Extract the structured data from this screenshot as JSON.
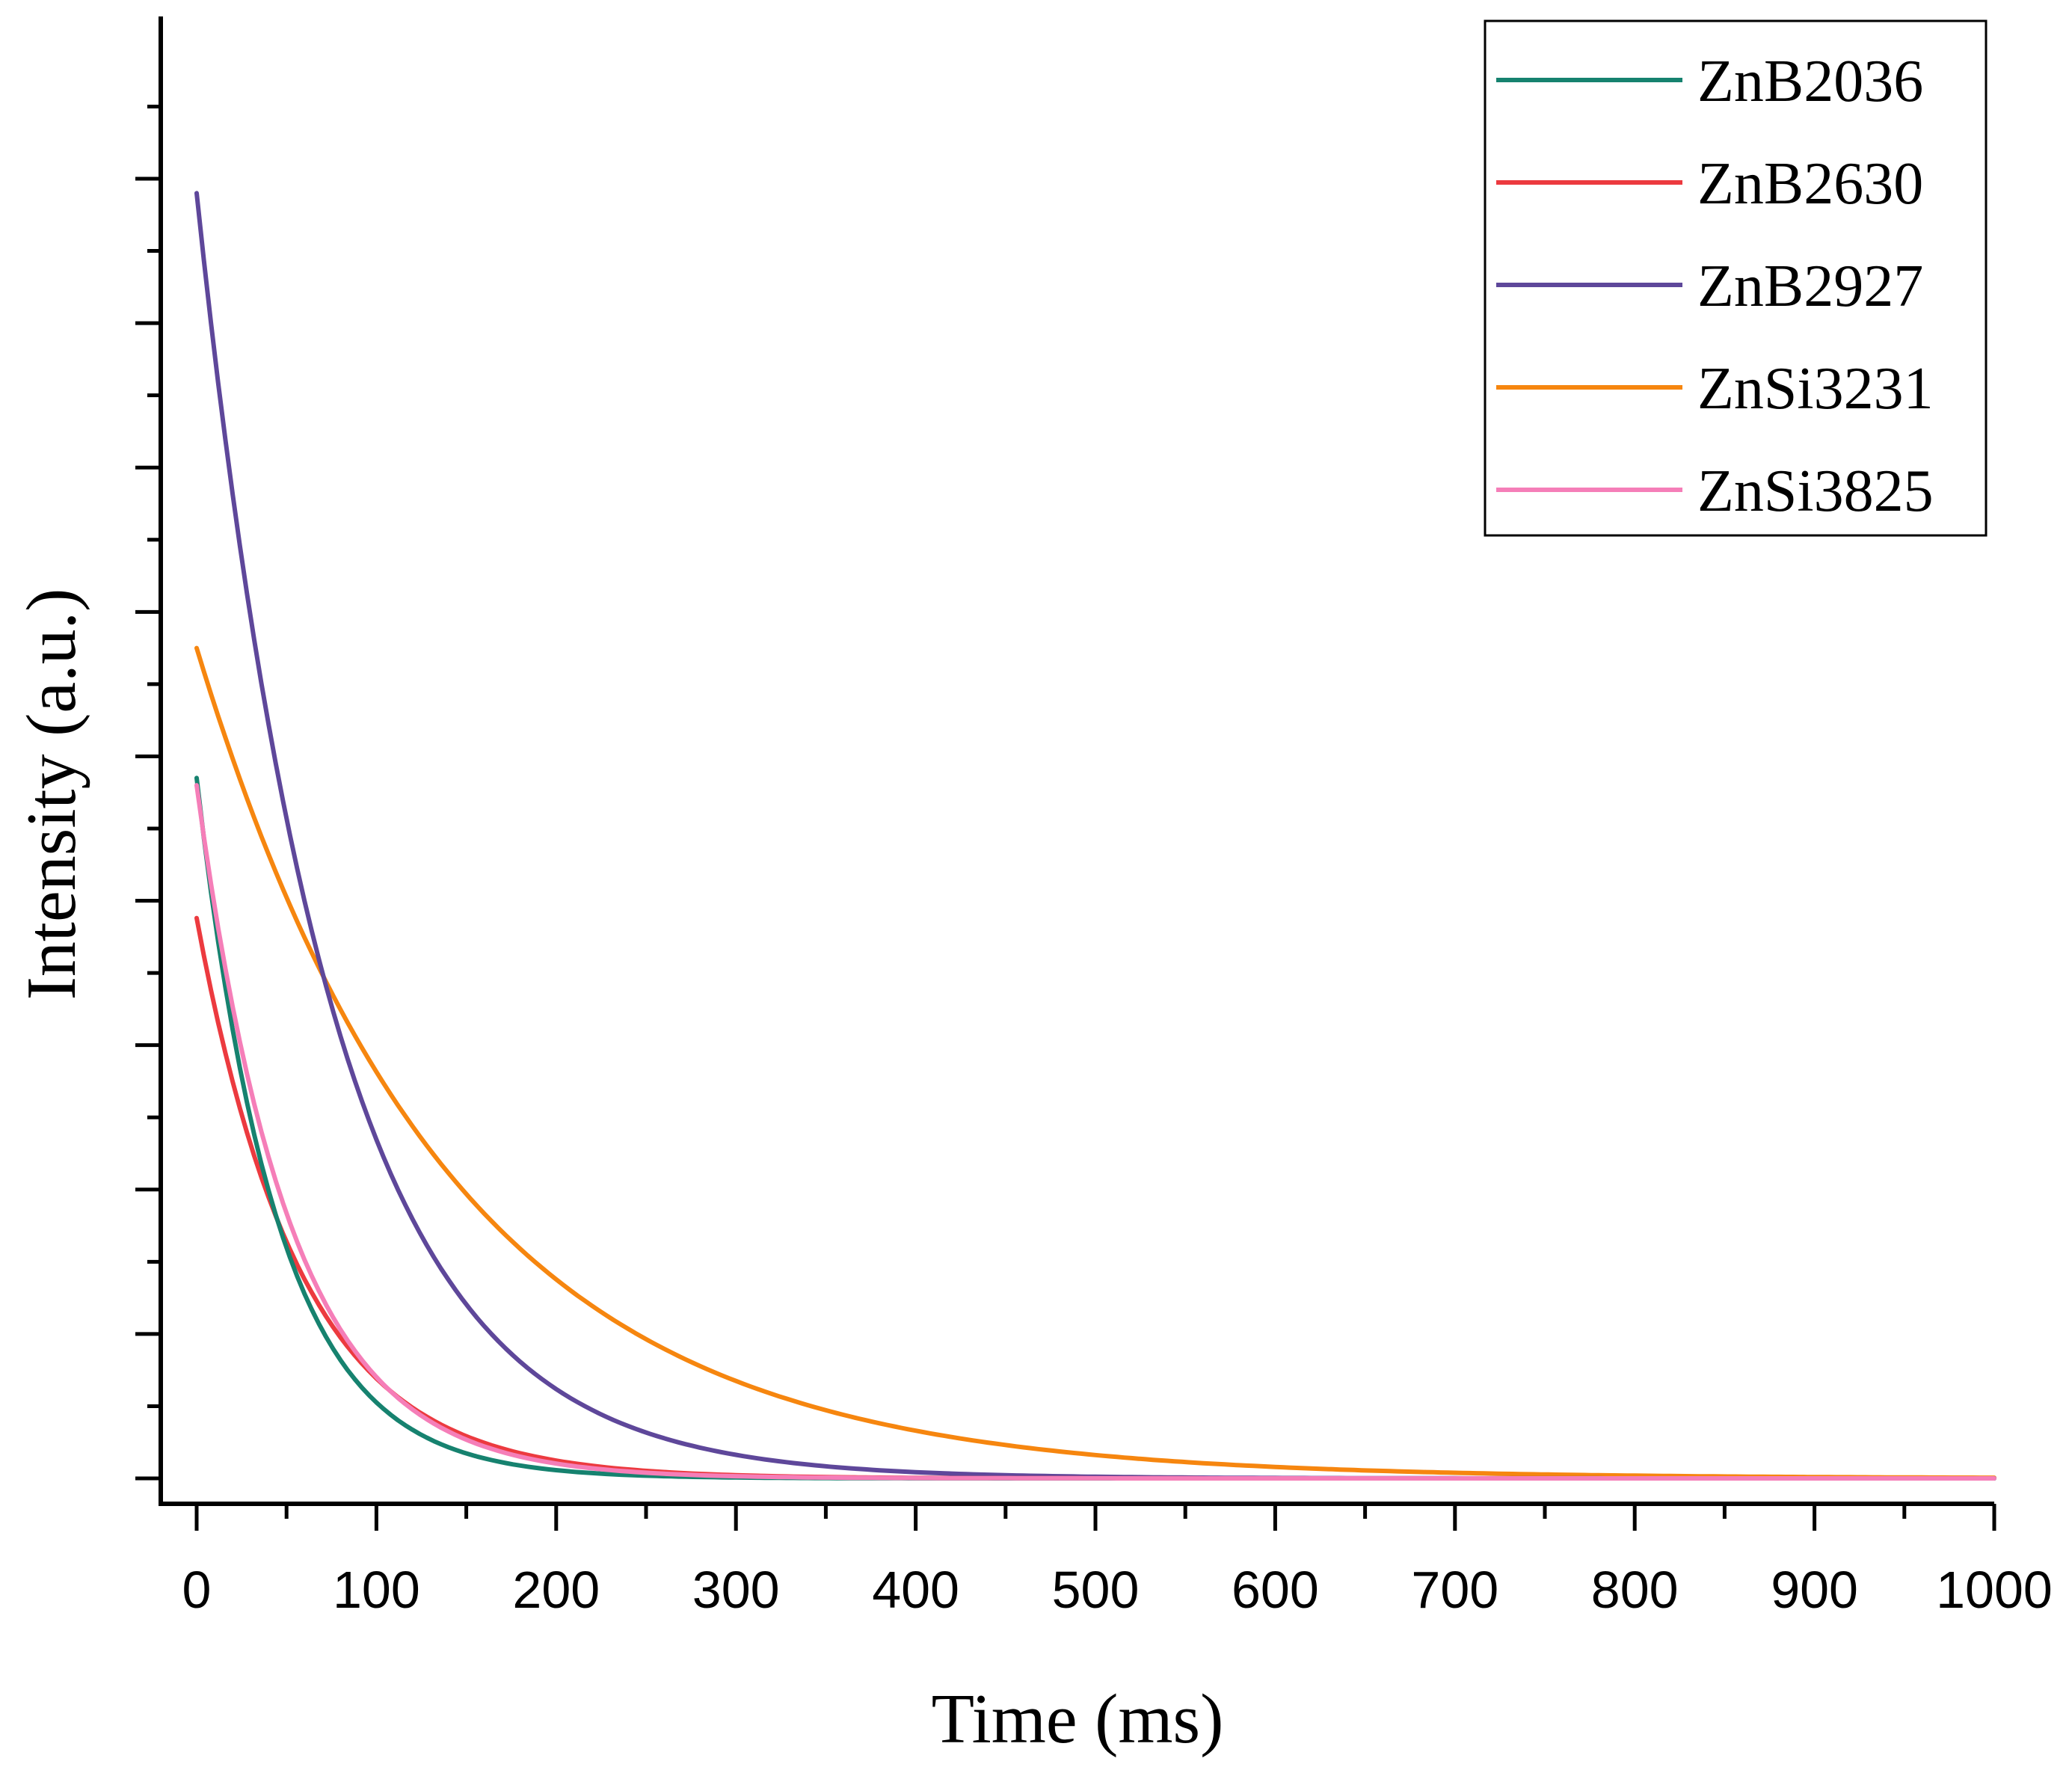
{
  "chart_data": {
    "type": "line",
    "title": "",
    "xlabel": "Time (ms)",
    "ylabel": "Intensity (a.u.)",
    "xlim": [
      -20,
      1000
    ],
    "ylim": [
      -0.015,
      1.0
    ],
    "xticks": [
      0,
      100,
      200,
      300,
      400,
      500,
      600,
      700,
      800,
      900,
      1000
    ],
    "xtick_labels": [
      "0",
      "100",
      "200",
      "300",
      "400",
      "500",
      "600",
      "700",
      "800",
      "900",
      "1000"
    ],
    "y_major_ticks": [
      0,
      0.1,
      0.2,
      0.3,
      0.4,
      0.5,
      0.6,
      0.7,
      0.8,
      0.9
    ],
    "y_minor_ticks": [
      0.05,
      0.15,
      0.25,
      0.35,
      0.45,
      0.55,
      0.65,
      0.75,
      0.85,
      0.95
    ],
    "grid": false,
    "legend_position": "top-right",
    "series": [
      {
        "name": "ZnB2036",
        "color": "#16826f",
        "decay_constant_ms": 45,
        "values_at_x": [
          [
            0,
            0.485
          ],
          [
            50,
            0.16
          ],
          [
            100,
            0.05
          ],
          [
            150,
            0.015
          ],
          [
            200,
            0.005
          ],
          [
            300,
            0.0005
          ]
        ]
      },
      {
        "name": "ZnB2630",
        "color": "#ec3a3f",
        "decay_constant_ms": 58,
        "values_at_x": [
          [
            0,
            0.388
          ],
          [
            50,
            0.165
          ],
          [
            100,
            0.07
          ],
          [
            150,
            0.03
          ],
          [
            200,
            0.012
          ],
          [
            300,
            0.002
          ]
        ]
      },
      {
        "name": "ZnB2927",
        "color": "#5e479a",
        "decay_constant_ms": 75,
        "values_at_x": [
          [
            0,
            0.89
          ],
          [
            50,
            0.46
          ],
          [
            100,
            0.235
          ],
          [
            150,
            0.12
          ],
          [
            200,
            0.062
          ],
          [
            300,
            0.016
          ],
          [
            400,
            0.004
          ]
        ]
      },
      {
        "name": "ZnSi3231",
        "color": "#f6860f",
        "decay_constant_ms": 140,
        "values_at_x": [
          [
            0,
            0.575
          ],
          [
            50,
            0.405
          ],
          [
            100,
            0.28
          ],
          [
            200,
            0.137
          ],
          [
            300,
            0.067
          ],
          [
            400,
            0.033
          ],
          [
            500,
            0.016
          ],
          [
            700,
            0.004
          ]
        ]
      },
      {
        "name": "ZnSi3825",
        "color": "#f57eb8",
        "decay_constant_ms": 52,
        "values_at_x": [
          [
            0,
            0.48
          ],
          [
            50,
            0.18
          ],
          [
            100,
            0.07
          ],
          [
            150,
            0.027
          ],
          [
            200,
            0.01
          ],
          [
            300,
            0.0015
          ]
        ]
      }
    ]
  }
}
